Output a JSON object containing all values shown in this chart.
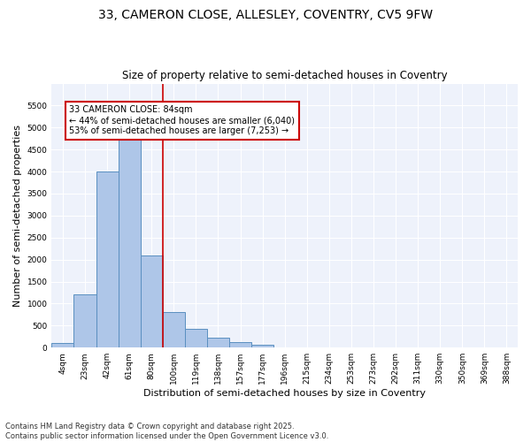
{
  "title_line1": "33, CAMERON CLOSE, ALLESLEY, COVENTRY, CV5 9FW",
  "title_line2": "Size of property relative to semi-detached houses in Coventry",
  "xlabel": "Distribution of semi-detached houses by size in Coventry",
  "ylabel": "Number of semi-detached properties",
  "categories": [
    "4sqm",
    "23sqm",
    "42sqm",
    "61sqm",
    "80sqm",
    "100sqm",
    "119sqm",
    "138sqm",
    "157sqm",
    "177sqm",
    "196sqm",
    "215sqm",
    "234sqm",
    "253sqm",
    "273sqm",
    "292sqm",
    "311sqm",
    "330sqm",
    "350sqm",
    "369sqm",
    "388sqm"
  ],
  "values": [
    100,
    1200,
    4000,
    4900,
    2100,
    800,
    420,
    220,
    130,
    70,
    0,
    0,
    0,
    0,
    0,
    0,
    0,
    0,
    0,
    0,
    0
  ],
  "bar_color": "#aec6e8",
  "bar_edge_color": "#5a8fc0",
  "vline_color": "#cc0000",
  "annotation_text": "33 CAMERON CLOSE: 84sqm\n← 44% of semi-detached houses are smaller (6,040)\n53% of semi-detached houses are larger (7,253) →",
  "box_color": "#cc0000",
  "ylim": [
    0,
    6000
  ],
  "yticks": [
    0,
    500,
    1000,
    1500,
    2000,
    2500,
    3000,
    3500,
    4000,
    4500,
    5000,
    5500
  ],
  "bg_color": "#eef2fb",
  "footer": "Contains HM Land Registry data © Crown copyright and database right 2025.\nContains public sector information licensed under the Open Government Licence v3.0.",
  "title_fontsize": 10,
  "subtitle_fontsize": 8.5,
  "axis_label_fontsize": 8,
  "tick_fontsize": 6.5,
  "annot_fontsize": 7
}
